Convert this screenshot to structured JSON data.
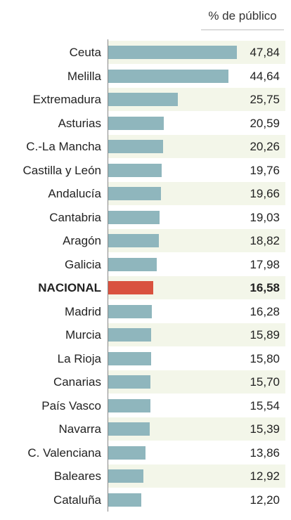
{
  "chart_data": {
    "type": "bar",
    "orientation": "horizontal",
    "column_header": "% de público",
    "categories": [
      "Ceuta",
      "Melilla",
      "Extremadura",
      "Asturias",
      "C.-La Mancha",
      "Castilla y León",
      "Andalucía",
      "Cantabria",
      "Aragón",
      "Galicia",
      "NACIONAL",
      "Madrid",
      "Murcia",
      "La Rioja",
      "Canarias",
      "País Vasco",
      "Navarra",
      "C. Valenciana",
      "Baleares",
      "Cataluña"
    ],
    "values": [
      47.84,
      44.64,
      25.75,
      20.59,
      20.26,
      19.76,
      19.66,
      19.03,
      18.82,
      17.98,
      16.58,
      16.28,
      15.89,
      15.8,
      15.7,
      15.54,
      15.39,
      13.86,
      12.92,
      12.2
    ],
    "value_labels": [
      "47,84",
      "44,64",
      "25,75",
      "20,59",
      "20,26",
      "19,76",
      "19,66",
      "19,03",
      "18,82",
      "17,98",
      "16,58",
      "16,28",
      "15,89",
      "15,80",
      "15,70",
      "15,54",
      "15,39",
      "13,86",
      "12,92",
      "12,20"
    ],
    "highlight": "NACIONAL",
    "xlim": [
      0,
      48
    ],
    "grid": false,
    "legend": "none"
  },
  "colors": {
    "bar": "#8fb6bd",
    "highlight_bar": "#d9523f",
    "stripe": "#f3f6e9"
  }
}
